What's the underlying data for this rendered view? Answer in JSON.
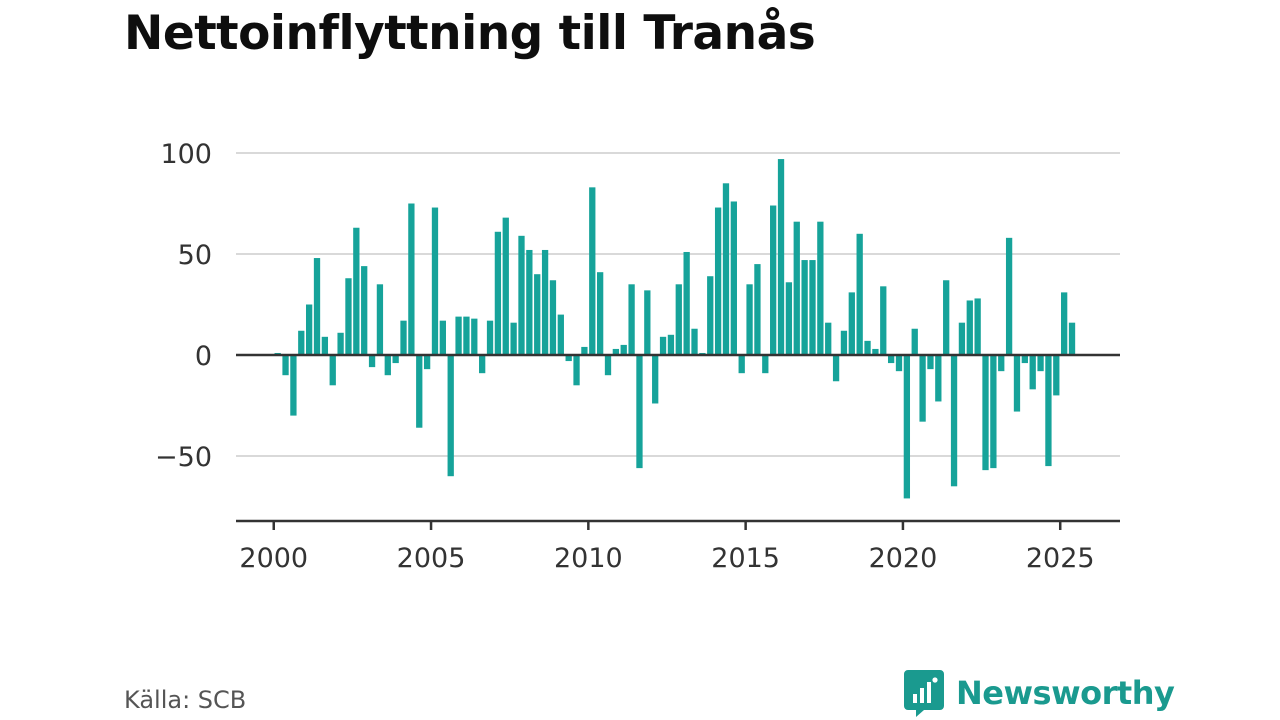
{
  "title": "Nettoinflyttning till Tranås",
  "source": "Källa: SCB",
  "brand": {
    "name": "Newsworthy",
    "color": "#1a9a8f",
    "icon": "newsworthy-logo-icon"
  },
  "colors": {
    "bar": "#16a39a",
    "grid": "#d9d9d9",
    "zero_line": "#333333",
    "axis": "#333333"
  },
  "chart_data": {
    "type": "bar",
    "title": "Nettoinflyttning till Tranås",
    "xlabel": "",
    "ylabel": "",
    "ylim": [
      -80,
      100
    ],
    "xlim": [
      1998.8,
      2026.9
    ],
    "yticks": [
      100,
      50,
      0,
      -50
    ],
    "ytick_labels": [
      "100",
      "50",
      "0",
      "−50"
    ],
    "xticks": [
      2000,
      2005,
      2010,
      2015,
      2020,
      2025
    ],
    "xtick_labels": [
      "2000",
      "2005",
      "2010",
      "2015",
      "2020",
      "2025"
    ],
    "grid": true,
    "x": [
      2000.0,
      2000.25,
      2000.5,
      2000.75,
      2001.0,
      2001.25,
      2001.5,
      2001.75,
      2002.0,
      2002.25,
      2002.5,
      2002.75,
      2003.0,
      2003.25,
      2003.5,
      2003.75,
      2004.0,
      2004.25,
      2004.5,
      2004.75,
      2005.0,
      2005.25,
      2005.5,
      2005.75,
      2006.0,
      2006.25,
      2006.5,
      2006.75,
      2007.0,
      2007.25,
      2007.5,
      2007.75,
      2008.0,
      2008.25,
      2008.5,
      2008.75,
      2009.0,
      2009.25,
      2009.5,
      2009.75,
      2010.0,
      2010.25,
      2010.5,
      2010.75,
      2011.0,
      2011.25,
      2011.5,
      2011.75,
      2012.0,
      2012.25,
      2012.5,
      2012.75,
      2013.0,
      2013.25,
      2013.5,
      2013.75,
      2014.0,
      2014.25,
      2014.5,
      2014.75,
      2015.0,
      2015.25,
      2015.5,
      2015.75,
      2016.0,
      2016.25,
      2016.5,
      2016.75,
      2017.0,
      2017.25,
      2017.5,
      2017.75,
      2018.0,
      2018.25,
      2018.5,
      2018.75,
      2019.0,
      2019.25,
      2019.5,
      2019.75,
      2020.0,
      2020.25,
      2020.5,
      2020.75,
      2021.0,
      2021.25,
      2021.5,
      2021.75,
      2022.0,
      2022.25,
      2022.5,
      2022.75,
      2023.0,
      2023.25,
      2023.5,
      2023.75,
      2024.0,
      2024.25,
      2024.5,
      2024.75,
      2025.0,
      2025.25
    ],
    "values": [
      1,
      -10,
      -30,
      12,
      25,
      48,
      9,
      -15,
      11,
      38,
      63,
      44,
      -6,
      35,
      -10,
      -4,
      17,
      75,
      -36,
      -7,
      73,
      17,
      -60,
      19,
      19,
      18,
      -9,
      17,
      61,
      68,
      16,
      59,
      52,
      40,
      52,
      37,
      20,
      -3,
      -15,
      4,
      83,
      41,
      -10,
      3,
      5,
      35,
      -56,
      32,
      -24,
      9,
      10,
      35,
      51,
      13,
      1,
      39,
      73,
      85,
      76,
      -9,
      35,
      45,
      -9,
      74,
      97,
      36,
      66,
      47,
      47,
      66,
      16,
      -13,
      12,
      31,
      60,
      7,
      3,
      34,
      -4,
      -8,
      -71,
      13,
      -33,
      -7,
      -23,
      37,
      -65,
      16,
      27,
      28,
      -57,
      -56,
      -8,
      58,
      -28,
      -4,
      -17,
      -8,
      -55,
      -20,
      31,
      16
    ]
  }
}
